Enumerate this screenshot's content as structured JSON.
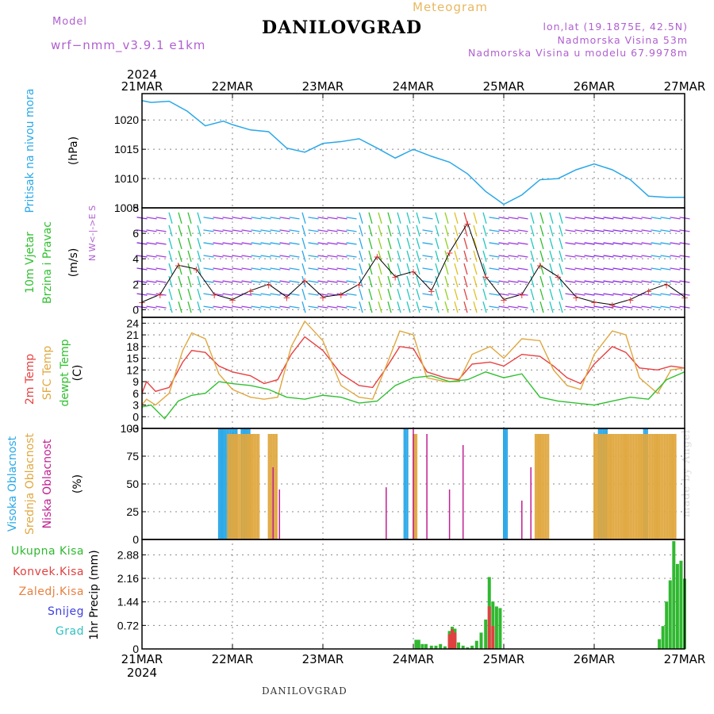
{
  "header": {
    "title": "DANILOVGRAD",
    "subtitle": "Meteogram",
    "model_label": "Model",
    "model_value": "wrf−nmm_v3.9.1  e1km",
    "location": "lon,lat (19.1875E, 42.5N)",
    "elevation": "Nadmorska Visina 53m",
    "model_elevation": "Nadmorska Visina u modelu 67.9978m",
    "footer": "DANILOVGRAD",
    "credit": "made by Angel"
  },
  "time_axis": {
    "year": "2024",
    "labels": [
      "21MAR",
      "22MAR",
      "23MAR",
      "24MAR",
      "25MAR",
      "26MAR",
      "27MAR"
    ]
  },
  "colors": {
    "pressure": "#2aa8e8",
    "temp_2m": "#e84040",
    "sfc_temp": "#e0a840",
    "dewpoint": "#30c030",
    "high_cloud": "#2aa8e8",
    "mid_cloud": "#e0a840",
    "low_cloud": "#c02090",
    "total_precip": "#30b830",
    "conv_precip": "#e04040",
    "wind_labels": "#30c030",
    "panel_labels_purple": "#b060d0"
  },
  "chart_data": [
    {
      "type": "line",
      "name": "pressure",
      "ylabel": "Pritisak na nivou mora",
      "unit": "(hPa)",
      "yticks": [
        1005,
        1010,
        1015,
        1020
      ],
      "ylim": [
        1005,
        1024.5
      ],
      "series": [
        {
          "name": "Pritisak na nivou mora",
          "color": "#2aa8e8",
          "x": [
            0,
            0.1,
            0.3,
            0.5,
            0.7,
            0.9,
            1.0,
            1.2,
            1.4,
            1.6,
            1.8,
            2.0,
            2.2,
            2.4,
            2.6,
            2.8,
            3.0,
            3.2,
            3.4,
            3.6,
            3.8,
            4.0,
            4.2,
            4.4,
            4.6,
            4.8,
            5.0,
            5.2,
            5.4,
            5.6,
            5.8,
            6.0
          ],
          "values": [
            1023.3,
            1023.0,
            1023.2,
            1021.5,
            1019.0,
            1019.8,
            1019.2,
            1018.3,
            1018.0,
            1015.2,
            1014.5,
            1016.0,
            1016.3,
            1016.8,
            1015.2,
            1013.5,
            1015.0,
            1013.8,
            1012.8,
            1010.8,
            1007.8,
            1005.6,
            1007.2,
            1009.8,
            1010.0,
            1011.5,
            1012.5,
            1011.5,
            1009.8,
            1007.0,
            1006.8,
            1006.8
          ]
        }
      ]
    },
    {
      "type": "scatter",
      "name": "wind",
      "ylabel": [
        "10m Vjetar",
        "Brzina i Pravac"
      ],
      "unit": "(m/s)",
      "yticks": [
        0,
        2,
        4,
        6,
        8
      ],
      "ylim": [
        -0.6,
        8
      ],
      "compass": "N W<-|->E S",
      "series": [
        {
          "name": "Brzina",
          "x": [
            0,
            0.2,
            0.4,
            0.6,
            0.8,
            1.0,
            1.2,
            1.4,
            1.6,
            1.8,
            2.0,
            2.2,
            2.4,
            2.6,
            2.8,
            3.0,
            3.2,
            3.4,
            3.6,
            3.8,
            4.0,
            4.2,
            4.4,
            4.6,
            4.8,
            5.0,
            5.2,
            5.4,
            5.6,
            5.8,
            6.0
          ],
          "values": [
            0.6,
            1.2,
            3.5,
            3.2,
            1.2,
            0.8,
            1.5,
            2.0,
            1.0,
            2.3,
            1.0,
            1.2,
            2.0,
            4.2,
            2.6,
            3.0,
            1.5,
            4.5,
            6.8,
            2.6,
            0.8,
            1.2,
            3.5,
            2.6,
            1.0,
            0.6,
            0.4,
            0.8,
            1.5,
            2.0,
            1.0
          ]
        }
      ]
    },
    {
      "type": "line",
      "name": "temperature",
      "ylabel": [
        "2m Temp",
        "SFC Temp",
        "dewpt Temp"
      ],
      "unit": "(C)",
      "yticks": [
        -3,
        0,
        3,
        6,
        9,
        12,
        15,
        18,
        21,
        24
      ],
      "ylim": [
        -3,
        25.5
      ],
      "series": [
        {
          "name": "2m Temp",
          "color": "#e84040",
          "x": [
            0,
            0.05,
            0.15,
            0.3,
            0.45,
            0.55,
            0.7,
            0.85,
            1.0,
            1.2,
            1.35,
            1.5,
            1.65,
            1.8,
            2.0,
            2.2,
            2.4,
            2.55,
            2.7,
            2.85,
            3.0,
            3.15,
            3.35,
            3.5,
            3.65,
            3.85,
            4.0,
            4.2,
            4.4,
            4.55,
            4.7,
            4.85,
            5.0,
            5.2,
            5.35,
            5.5,
            5.7,
            5.85,
            6.0
          ],
          "values": [
            6.0,
            9.0,
            6.5,
            7.5,
            14.0,
            17.0,
            16.5,
            13.0,
            11.5,
            10.5,
            8.5,
            9.5,
            16.0,
            20.5,
            17.0,
            11.0,
            8.0,
            7.5,
            12.5,
            18.0,
            17.5,
            11.5,
            10.0,
            9.5,
            13.5,
            14.0,
            13.0,
            16.0,
            15.5,
            13.0,
            10.0,
            8.5,
            13.5,
            18.0,
            16.5,
            12.5,
            12.0,
            13.0,
            12.5
          ]
        },
        {
          "name": "SFC Temp",
          "color": "#e0a840",
          "x": [
            0,
            0.05,
            0.15,
            0.3,
            0.45,
            0.55,
            0.7,
            0.85,
            1.0,
            1.2,
            1.35,
            1.5,
            1.65,
            1.8,
            2.0,
            2.2,
            2.4,
            2.55,
            2.7,
            2.85,
            3.0,
            3.15,
            3.35,
            3.5,
            3.65,
            3.85,
            4.0,
            4.2,
            4.4,
            4.55,
            4.7,
            4.85,
            5.0,
            5.2,
            5.35,
            5.5,
            5.7,
            5.85,
            6.0
          ],
          "values": [
            3.0,
            4.5,
            3.0,
            6.0,
            17.0,
            21.5,
            20.0,
            11.0,
            7.0,
            5.0,
            4.5,
            5.0,
            18.0,
            24.5,
            19.5,
            8.0,
            5.0,
            4.5,
            13.0,
            22.0,
            21.0,
            10.0,
            9.0,
            9.0,
            16.0,
            18.0,
            15.0,
            20.0,
            19.5,
            12.0,
            8.0,
            7.0,
            16.0,
            22.0,
            21.0,
            10.0,
            6.0,
            12.0,
            12.5
          ]
        },
        {
          "name": "dewpt Temp",
          "color": "#30c030",
          "x": [
            0,
            0.1,
            0.25,
            0.4,
            0.55,
            0.7,
            0.85,
            1.0,
            1.2,
            1.4,
            1.6,
            1.8,
            2.0,
            2.2,
            2.4,
            2.6,
            2.8,
            3.0,
            3.2,
            3.4,
            3.6,
            3.8,
            4.0,
            4.2,
            4.4,
            4.6,
            4.8,
            5.0,
            5.2,
            5.4,
            5.6,
            5.8,
            6.0
          ],
          "values": [
            2.5,
            3.0,
            -0.5,
            4.0,
            5.5,
            6.0,
            9.0,
            8.5,
            8.0,
            7.0,
            5.0,
            4.5,
            5.5,
            5.0,
            3.5,
            4.0,
            8.0,
            10.0,
            10.5,
            9.0,
            9.5,
            11.5,
            10.0,
            11.0,
            5.0,
            4.0,
            3.5,
            3.0,
            4.0,
            5.0,
            4.5,
            9.5,
            11.5
          ]
        }
      ]
    },
    {
      "type": "bar",
      "name": "clouds",
      "ylabel": [
        "Visoka Oblacnost",
        "Srednja Oblacnost",
        "Niska Oblacnost"
      ],
      "unit": "(%)",
      "yticks": [
        0,
        25,
        50,
        75,
        100
      ],
      "ylim": [
        0,
        100
      ],
      "series": [
        {
          "name": "Visoka Oblacnost",
          "color": "#2aa8e8",
          "ranges": [
            [
              0.85,
              1.05
            ],
            [
              1.1,
              1.2
            ],
            [
              2.9,
              2.95
            ],
            [
              4.0,
              4.05
            ],
            [
              5.05,
              5.15
            ],
            [
              5.55,
              5.6
            ]
          ],
          "value": 100
        },
        {
          "name": "Srednja Oblacnost",
          "color": "#e0a840",
          "ranges": [
            [
              0.95,
              1.3
            ],
            [
              1.4,
              1.5
            ],
            [
              3.0,
              3.05
            ],
            [
              4.35,
              4.5
            ],
            [
              5.0,
              5.9
            ]
          ],
          "value": 95
        },
        {
          "name": "Niska Oblacnost",
          "color": "#c02090",
          "x": [
            1.45,
            1.52,
            2.7,
            3.0,
            3.15,
            3.4,
            3.55,
            4.2,
            4.3
          ],
          "values": [
            65,
            45,
            47,
            100,
            95,
            45,
            85,
            35,
            65
          ]
        }
      ]
    },
    {
      "type": "bar",
      "name": "precip",
      "ylabel": "1hr Precip",
      "unit": "(mm)",
      "yticks": [
        0,
        0.72,
        1.44,
        2.16,
        2.88
      ],
      "ytick_labels": [
        "0",
        "0.72",
        "1.44",
        "2.16",
        "2.88"
      ],
      "ylim": [
        0,
        3.35
      ],
      "legend": [
        "Ukupna Kisa",
        "Konvek.Kisa",
        "Zaledj.Kisa",
        "Snijeg",
        "Grad"
      ],
      "legend_colors": [
        "#30b830",
        "#e04040",
        "#e88040",
        "#4040e0",
        "#30c0c0"
      ],
      "series": [
        {
          "name": "Ukupna Kisa",
          "color": "#30b830",
          "x": [
            3.03,
            3.06,
            3.1,
            3.14,
            3.2,
            3.25,
            3.3,
            3.35,
            3.4,
            3.43,
            3.46,
            3.5,
            3.55,
            3.6,
            3.65,
            3.7,
            3.75,
            3.8,
            3.84,
            3.88,
            3.92,
            3.96,
            5.72,
            5.76,
            5.8,
            5.84,
            5.88,
            5.92,
            5.96,
            6.0
          ],
          "values": [
            0.28,
            0.28,
            0.15,
            0.15,
            0.1,
            0.1,
            0.15,
            0.08,
            0.55,
            0.68,
            0.62,
            0.2,
            0.1,
            0.05,
            0.1,
            0.25,
            0.5,
            0.9,
            2.2,
            1.45,
            1.3,
            1.25,
            0.3,
            0.7,
            1.45,
            2.1,
            3.3,
            2.6,
            2.7,
            2.15
          ]
        },
        {
          "name": "Konvek.Kisa",
          "color": "#e04040",
          "x": [
            3.4,
            3.43,
            3.46,
            3.84,
            3.88
          ],
          "values": [
            0.45,
            0.6,
            0.5,
            1.3,
            0.7
          ]
        }
      ]
    }
  ]
}
